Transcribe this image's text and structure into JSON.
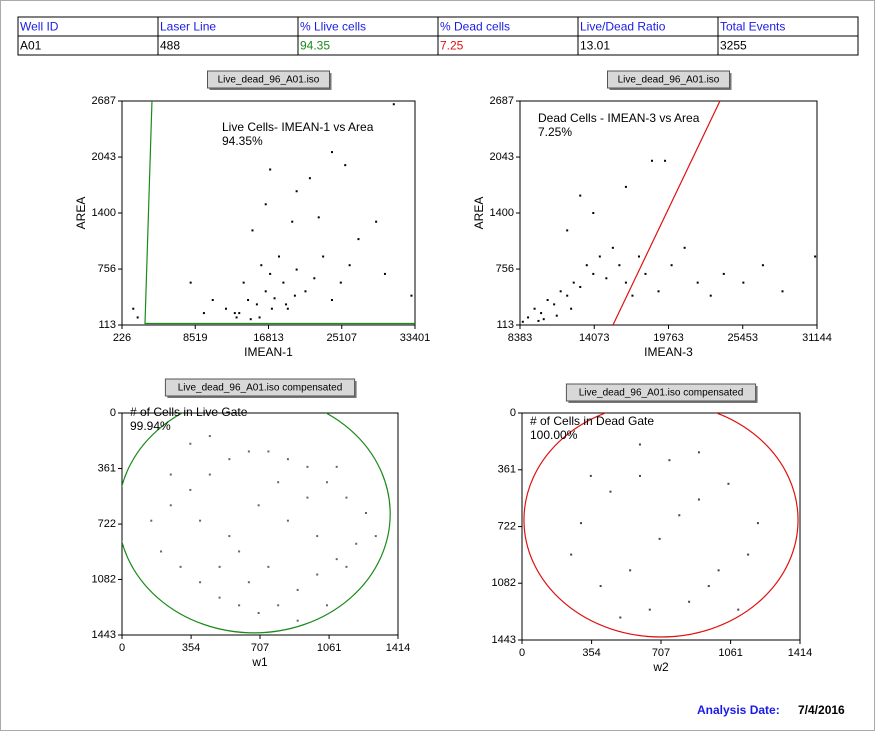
{
  "table": {
    "header": [
      "Well ID",
      "Laser Line",
      "% Llive cells",
      "% Dead cells",
      "Live/Dead Ratio",
      "Total Events"
    ],
    "rows": [
      [
        "A01",
        "488",
        "94.35",
        "7.25",
        "13.01",
        "3255"
      ]
    ]
  },
  "chart_data": [
    {
      "type": "scatter",
      "title": "Live_dead_96_A01.iso",
      "xlabel": "IMEAN-1",
      "ylabel": "AREA",
      "xlim": [
        226,
        33401
      ],
      "ylim": [
        113,
        2687
      ],
      "xticks": [
        226,
        8519,
        16813,
        25107,
        33401
      ],
      "yticks": [
        113,
        756,
        1400,
        2043,
        2687
      ],
      "color": "#000000",
      "x": [
        12000,
        13000,
        13500,
        14500,
        15500,
        16500,
        17500,
        18500,
        19000,
        14000,
        16000,
        17000,
        18000,
        20000,
        21000,
        22000,
        23000,
        24000,
        25000,
        26000,
        27000,
        15000,
        19500,
        22500,
        16500,
        20000,
        17000,
        21500,
        24000,
        25500,
        29000,
        9500,
        10500,
        8000,
        1500,
        2000,
        33000,
        30000,
        31000,
        15800,
        17200,
        18800,
        14800,
        13200,
        19800
      ],
      "y": [
        300,
        250,
        250,
        400,
        350,
        500,
        420,
        600,
        300,
        600,
        800,
        700,
        900,
        750,
        500,
        650,
        900,
        400,
        600,
        800,
        1100,
        1200,
        1300,
        1350,
        1500,
        1650,
        1900,
        1800,
        2100,
        1950,
        1300,
        250,
        400,
        600,
        300,
        200,
        450,
        700,
        2650,
        200,
        300,
        350,
        180,
        200,
        450
      ],
      "gate": {
        "x": [
          3620,
          2830,
          33401
        ],
        "y": [
          2687,
          130,
          130
        ]
      },
      "gate_color": "#1a8a1a",
      "gate_label": "Live Cells- IMEAN-1 vs Area",
      "gate_percent": "94.35%"
    },
    {
      "type": "scatter",
      "title": "Live_dead_96_A01.iso",
      "xlabel": "IMEAN-3",
      "ylabel": "AREA",
      "xlim": [
        8383,
        31144
      ],
      "ylim": [
        113,
        2687
      ],
      "xticks": [
        8383,
        14073,
        19763,
        25453,
        31144
      ],
      "yticks": [
        113,
        756,
        1400,
        2043,
        2687
      ],
      "color": "#000000",
      "x": [
        9000,
        9500,
        10000,
        10500,
        11000,
        11500,
        12000,
        12500,
        13000,
        13500,
        14000,
        14500,
        15000,
        15500,
        16000,
        16500,
        17000,
        17500,
        18000,
        19000,
        20000,
        21000,
        22000,
        23000,
        24000,
        25500,
        27000,
        28500,
        31000,
        12000,
        14000,
        16500,
        18500,
        19500,
        13000,
        8600,
        10200,
        11200,
        12300,
        9800
      ],
      "y": [
        200,
        300,
        250,
        400,
        350,
        500,
        450,
        600,
        550,
        800,
        700,
        900,
        650,
        1000,
        800,
        600,
        450,
        900,
        700,
        500,
        800,
        1000,
        600,
        450,
        700,
        600,
        800,
        500,
        900,
        1200,
        1400,
        1700,
        2000,
        2000,
        1600,
        150,
        180,
        220,
        300,
        160
      ],
      "gate": {
        "x": [
          15507,
          23706
        ],
        "y": [
          113,
          2687
        ]
      },
      "gate_color": "#e01010",
      "gate_label": "Dead Cells - IMEAN-3 vs Area",
      "gate_percent": "7.25%"
    },
    {
      "type": "scatter",
      "title": "Live_dead_96_A01.iso compensated",
      "xlabel": "w1",
      "xlim": [
        0,
        1414
      ],
      "ylim": [
        1443,
        0
      ],
      "xticks": [
        0,
        354,
        707,
        1061,
        1414
      ],
      "yticks": [
        0,
        361,
        722,
        1082,
        1443
      ],
      "color": "#666666",
      "x": [
        150,
        250,
        350,
        450,
        550,
        650,
        750,
        850,
        950,
        1050,
        1150,
        1250,
        200,
        300,
        400,
        500,
        600,
        700,
        800,
        900,
        1000,
        1100,
        1200,
        1300,
        250,
        400,
        550,
        700,
        850,
        1000,
        1150,
        350,
        500,
        650,
        800,
        950,
        1100,
        450,
        600,
        750,
        900,
        1050
      ],
      "y": [
        700,
        600,
        500,
        400,
        300,
        250,
        250,
        300,
        350,
        450,
        550,
        650,
        900,
        1000,
        1100,
        1200,
        1250,
        1300,
        1250,
        1150,
        1050,
        950,
        850,
        800,
        400,
        700,
        800,
        600,
        700,
        800,
        1000,
        200,
        1000,
        1100,
        450,
        550,
        350,
        150,
        900,
        1000,
        1350,
        1250
      ],
      "gate": {
        "cx": 677,
        "cy": 656,
        "rx": 697,
        "ry": 773
      },
      "gate_color": "#1a8a1a",
      "gate_label": "# of Cells in Live Gate",
      "gate_percent": "99.94%"
    },
    {
      "type": "scatter",
      "title": "Live_dead_96_A01.iso compensated",
      "xlabel": "w2",
      "xlim": [
        0,
        1414
      ],
      "ylim": [
        1443,
        0
      ],
      "xticks": [
        0,
        354,
        707,
        1061,
        1414
      ],
      "yticks": [
        0,
        361,
        722,
        1082,
        1443
      ],
      "color": "#444444",
      "x": [
        300,
        450,
        600,
        750,
        900,
        1050,
        1200,
        250,
        400,
        550,
        700,
        850,
        1000,
        1150,
        500,
        650,
        800,
        950,
        350,
        1100,
        600,
        900
      ],
      "y": [
        700,
        500,
        400,
        300,
        550,
        450,
        700,
        900,
        1100,
        1000,
        800,
        1200,
        1000,
        900,
        1300,
        1250,
        650,
        1100,
        400,
        1250,
        200,
        250
      ],
      "gate": {
        "cx": 707,
        "cy": 680,
        "rx": 697,
        "ry": 744
      },
      "gate_color": "#e01010",
      "gate_label": "# of Cells in Dead Gate",
      "gate_percent": "100.00%"
    }
  ],
  "footer": {
    "label": "Analysis Date:",
    "date": "7/4/2016"
  }
}
